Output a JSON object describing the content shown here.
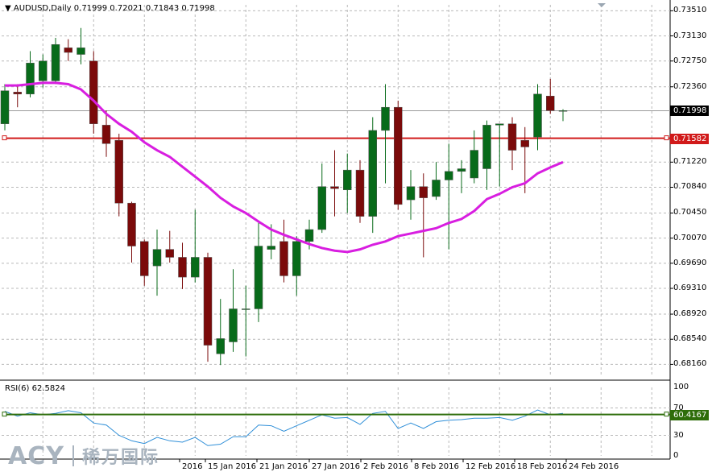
{
  "header": {
    "symbol_info": "AUDUSD,Daily  0.71999 0.72021 0.71843 0.71998"
  },
  "rsi_panel": {
    "title": "RSI(6) 62.5824"
  },
  "price_axis": {
    "ticks": [
      "0.73510",
      "0.73130",
      "0.72750",
      "0.72360",
      "0.71998",
      "0.71582",
      "0.71220",
      "0.70840",
      "0.70450",
      "0.70070",
      "0.69690",
      "0.69310",
      "0.68920",
      "0.68540",
      "0.68160"
    ]
  },
  "rsi_axis": {
    "ticks": [
      "100",
      "70",
      "30",
      "0"
    ]
  },
  "tags": {
    "current_price": "0.71998",
    "level_price": "0.71582",
    "rsi_level": "60.4167"
  },
  "date_labels": [
    "2016",
    "15 Jan 2016",
    "21 Jan 2016",
    "27 Jan 2016",
    "2 Feb 2016",
    "8 Feb 2016",
    "12 Feb 2016",
    "18 Feb 2016",
    "24 Feb 2016"
  ],
  "logo": {
    "brand": "ACY",
    "brand_cn": "稀万国际"
  },
  "colors": {
    "bull": "#086b1a",
    "bear": "#7b0a0a",
    "ma": "#d81ee0",
    "level_line": "#d11a1a",
    "rsi_line": "#2f8fd8",
    "rsi_level_line": "#2e6d0a",
    "grid": "#b9b9b9",
    "logo_acy": "#a9b4bf",
    "logo_cn": "#a9b4bf"
  },
  "chart_data": {
    "type": "candlestick",
    "symbol": "AUDUSD",
    "timeframe": "Daily",
    "ylim": [
      0.6797,
      0.736
    ],
    "candles": [
      {
        "o": 0.718,
        "h": 0.724,
        "l": 0.717,
        "c": 0.723
      },
      {
        "o": 0.7228,
        "h": 0.724,
        "l": 0.7205,
        "c": 0.7225
      },
      {
        "o": 0.7225,
        "h": 0.729,
        "l": 0.722,
        "c": 0.7272
      },
      {
        "o": 0.7245,
        "h": 0.7285,
        "l": 0.7235,
        "c": 0.7275
      },
      {
        "o": 0.7245,
        "h": 0.731,
        "l": 0.724,
        "c": 0.73
      },
      {
        "o": 0.7295,
        "h": 0.7308,
        "l": 0.7275,
        "c": 0.7288
      },
      {
        "o": 0.7285,
        "h": 0.7325,
        "l": 0.727,
        "c": 0.7295
      },
      {
        "o": 0.7275,
        "h": 0.729,
        "l": 0.7165,
        "c": 0.718
      },
      {
        "o": 0.7178,
        "h": 0.72,
        "l": 0.713,
        "c": 0.715
      },
      {
        "o": 0.7155,
        "h": 0.7165,
        "l": 0.704,
        "c": 0.706
      },
      {
        "o": 0.706,
        "h": 0.7062,
        "l": 0.697,
        "c": 0.6995
      },
      {
        "o": 0.7002,
        "h": 0.7005,
        "l": 0.6935,
        "c": 0.695
      },
      {
        "o": 0.6965,
        "h": 0.702,
        "l": 0.692,
        "c": 0.699
      },
      {
        "o": 0.699,
        "h": 0.7018,
        "l": 0.697,
        "c": 0.6978
      },
      {
        "o": 0.6978,
        "h": 0.7,
        "l": 0.693,
        "c": 0.6948
      },
      {
        "o": 0.6948,
        "h": 0.705,
        "l": 0.694,
        "c": 0.6978
      },
      {
        "o": 0.6978,
        "h": 0.6985,
        "l": 0.682,
        "c": 0.6845
      },
      {
        "o": 0.6832,
        "h": 0.6915,
        "l": 0.6815,
        "c": 0.6855
      },
      {
        "o": 0.685,
        "h": 0.696,
        "l": 0.6835,
        "c": 0.69
      },
      {
        "o": 0.69,
        "h": 0.6935,
        "l": 0.6828,
        "c": 0.69
      },
      {
        "o": 0.69,
        "h": 0.703,
        "l": 0.688,
        "c": 0.6995
      },
      {
        "o": 0.699,
        "h": 0.7028,
        "l": 0.6975,
        "c": 0.6995
      },
      {
        "o": 0.7002,
        "h": 0.7035,
        "l": 0.694,
        "c": 0.695
      },
      {
        "o": 0.695,
        "h": 0.701,
        "l": 0.692,
        "c": 0.7002
      },
      {
        "o": 0.7002,
        "h": 0.7035,
        "l": 0.699,
        "c": 0.702
      },
      {
        "o": 0.702,
        "h": 0.712,
        "l": 0.7015,
        "c": 0.7085
      },
      {
        "o": 0.7085,
        "h": 0.714,
        "l": 0.704,
        "c": 0.7082
      },
      {
        "o": 0.708,
        "h": 0.7135,
        "l": 0.7045,
        "c": 0.711
      },
      {
        "o": 0.711,
        "h": 0.7125,
        "l": 0.703,
        "c": 0.704
      },
      {
        "o": 0.704,
        "h": 0.719,
        "l": 0.7015,
        "c": 0.717
      },
      {
        "o": 0.717,
        "h": 0.724,
        "l": 0.709,
        "c": 0.7205
      },
      {
        "o": 0.7205,
        "h": 0.7215,
        "l": 0.705,
        "c": 0.7058
      },
      {
        "o": 0.7065,
        "h": 0.711,
        "l": 0.7035,
        "c": 0.7085
      },
      {
        "o": 0.7085,
        "h": 0.7105,
        "l": 0.6978,
        "c": 0.7068
      },
      {
        "o": 0.707,
        "h": 0.7122,
        "l": 0.7065,
        "c": 0.7095
      },
      {
        "o": 0.7095,
        "h": 0.715,
        "l": 0.699,
        "c": 0.7108
      },
      {
        "o": 0.7108,
        "h": 0.7125,
        "l": 0.7075,
        "c": 0.7112
      },
      {
        "o": 0.7098,
        "h": 0.717,
        "l": 0.709,
        "c": 0.714
      },
      {
        "o": 0.7112,
        "h": 0.7185,
        "l": 0.708,
        "c": 0.7178
      },
      {
        "o": 0.7178,
        "h": 0.718,
        "l": 0.7085,
        "c": 0.718
      },
      {
        "o": 0.718,
        "h": 0.719,
        "l": 0.711,
        "c": 0.714
      },
      {
        "o": 0.7155,
        "h": 0.7175,
        "l": 0.7075,
        "c": 0.7145
      },
      {
        "o": 0.716,
        "h": 0.724,
        "l": 0.714,
        "c": 0.7225
      },
      {
        "o": 0.7222,
        "h": 0.7248,
        "l": 0.7195,
        "c": 0.72
      },
      {
        "o": 0.72,
        "h": 0.7202,
        "l": 0.7184,
        "c": 0.72
      }
    ],
    "ma": [
      0.7238,
      0.7238,
      0.724,
      0.7242,
      0.7242,
      0.724,
      0.7232,
      0.7215,
      0.7195,
      0.718,
      0.7168,
      0.7152,
      0.714,
      0.713,
      0.7115,
      0.71,
      0.7085,
      0.7068,
      0.7055,
      0.7045,
      0.7032,
      0.702,
      0.7012,
      0.7005,
      0.6998,
      0.6992,
      0.6988,
      0.6986,
      0.699,
      0.6997,
      0.7002,
      0.701,
      0.7014,
      0.7018,
      0.7022,
      0.703,
      0.7036,
      0.7048,
      0.7066,
      0.7074,
      0.7084,
      0.709,
      0.7105,
      0.7114,
      0.7122
    ],
    "horizontal_level": 0.71582,
    "current_price": 0.71998,
    "rsi": {
      "name": "RSI(6)",
      "last": 62.5824,
      "level": 60.4167,
      "ylim": [
        0,
        100
      ],
      "values": [
        65,
        58,
        63,
        60,
        62,
        66,
        63,
        48,
        45,
        30,
        22,
        18,
        27,
        22,
        20,
        27,
        15,
        17,
        28,
        28,
        45,
        44,
        36,
        44,
        52,
        60,
        55,
        56,
        46,
        62,
        65,
        40,
        48,
        40,
        50,
        52,
        53,
        55,
        55,
        56,
        52,
        58,
        67,
        60,
        62
      ]
    },
    "x_labels": [
      "2016",
      "15 Jan 2016",
      "21 Jan 2016",
      "27 Jan 2016",
      "2 Feb 2016",
      "8 Feb 2016",
      "12 Feb 2016",
      "18 Feb 2016",
      "24 Feb 2016"
    ]
  }
}
